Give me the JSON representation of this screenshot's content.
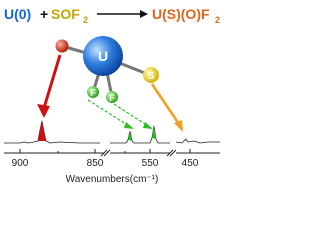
{
  "header": {
    "reactant_metal": "U(0)",
    "plus": "+",
    "reactant_gas": "SOF",
    "reactant_gas_sub": "2",
    "product": "U(S)(O)F",
    "product_sub": "2"
  },
  "molecule": {
    "center": "U",
    "sulfur": "S",
    "fluorine_1": "F",
    "fluorine_2": "F"
  },
  "spectrum": {
    "ticks": [
      "900",
      "850",
      "550",
      "450"
    ],
    "axis_label": "Wavenumbers(cm⁻¹)"
  }
}
